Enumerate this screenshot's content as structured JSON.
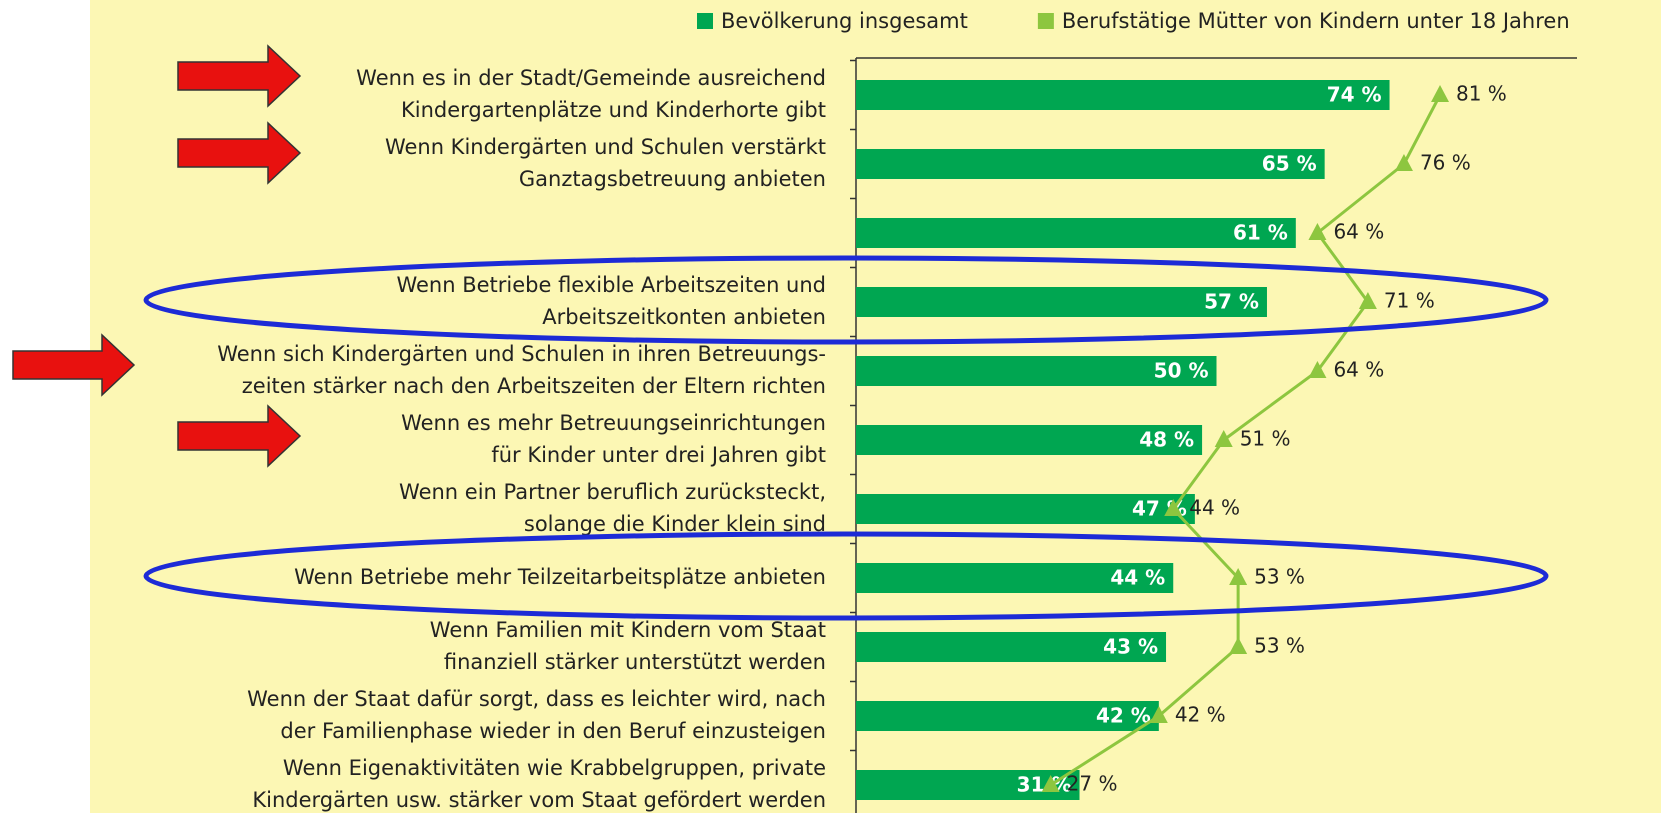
{
  "chart_data": {
    "type": "bar",
    "categories": [
      [
        "Wenn es in der Stadt/Gemeinde ausreichend",
        "Kindergartenplätze und Kinderhorte gibt"
      ],
      [
        "Wenn Kindergärten und Schulen verstärkt",
        "Ganztagsbetreuung anbieten"
      ],
      null,
      [
        "Wenn Betriebe flexible Arbeitszeiten und",
        "Arbeitszeitkonten anbieten"
      ],
      [
        "Wenn sich Kindergärten und Schulen in ihren Betreuungs-",
        "zeiten stärker nach den Arbeitszeiten der Eltern richten"
      ],
      [
        "Wenn es mehr Betreuungseinrichtungen",
        "für Kinder unter drei Jahren gibt"
      ],
      [
        "Wenn ein Partner beruflich zurücksteckt,",
        "solange die Kinder klein sind"
      ],
      [
        "Wenn Betriebe mehr Teilzeitarbeitsplätze anbieten"
      ],
      [
        "Wenn Familien mit Kindern vom Staat",
        "finanziell stärker unterstützt werden"
      ],
      [
        "Wenn der Staat dafür sorgt, dass es leichter wird, nach",
        "der Familienphase wieder in den Beruf einzusteigen"
      ],
      [
        "Wenn Eigenaktivitäten wie Krabbelgruppen, private",
        "Kindergärten usw. stärker vom Staat gefördert werden"
      ]
    ],
    "series": [
      {
        "name": "Bevölkerung insgesamt",
        "color": "#00a651",
        "type": "bar",
        "values": [
          74,
          65,
          61,
          57,
          50,
          48,
          47,
          44,
          43,
          42,
          31
        ],
        "value_labels": [
          "74 %",
          "65 %",
          "61 %",
          "57 %",
          "50 %",
          "48 %",
          "47 %",
          "44 %",
          "43 %",
          "42 %",
          "31 %"
        ]
      },
      {
        "name": "Berufstätige Mütter von Kindern unter 18 Jahren",
        "color": "#8dc63f",
        "type": "line",
        "values": [
          81,
          76,
          64,
          71,
          64,
          51,
          44,
          53,
          53,
          42,
          27
        ],
        "value_labels": [
          "81 %",
          "76 %",
          "64 %",
          "71 %",
          "64 %",
          "51 %",
          "44 %",
          "53 %",
          "53 %",
          "42 %",
          "27 %"
        ]
      }
    ],
    "xlim": [
      0,
      100
    ]
  }
}
